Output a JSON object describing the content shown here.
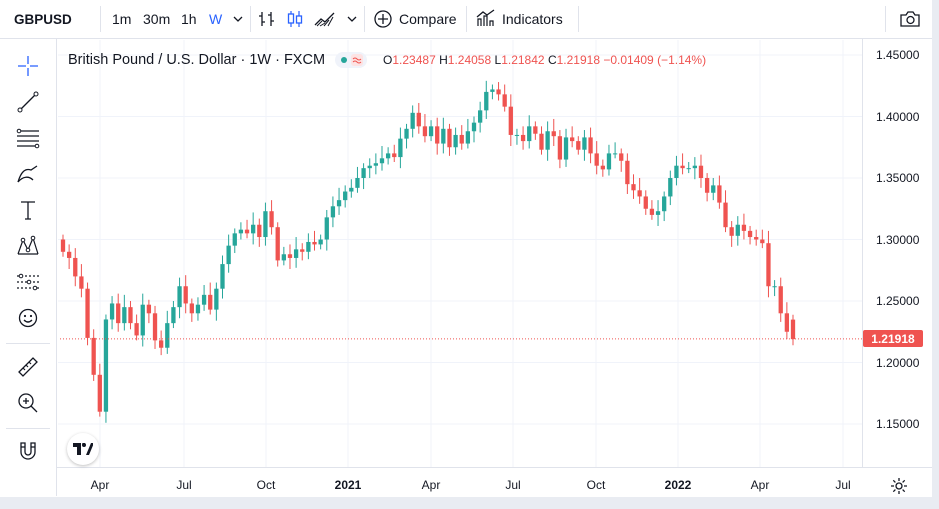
{
  "toolbar": {
    "symbol": "GBPUSD",
    "timeframes": [
      "1m",
      "30m",
      "1h",
      "W"
    ],
    "active_timeframe": "W",
    "compare_label": "Compare",
    "indicators_label": "Indicators"
  },
  "legend": {
    "title": "British Pound / U.S. Dollar · 1W · FXCM",
    "o_key": "O",
    "o_val": "1.23487",
    "h_key": "H",
    "h_val": "1.24058",
    "l_key": "L",
    "l_val": "1.21842",
    "c_key": "C",
    "c_val": "1.21918",
    "change": "−0.01409 (−1.14%)"
  },
  "current_price": "1.21918",
  "colors": {
    "up": "#26a69a",
    "down": "#ef5350",
    "accent": "#2962ff"
  },
  "left_tools": [
    "crosshair-icon",
    "trend-line-icon",
    "fib-lines-icon",
    "brush-icon",
    "text-icon",
    "pattern-icon",
    "forecast-icon",
    "emoji-icon",
    "ruler-icon",
    "zoom-in-icon",
    "magnet-icon"
  ],
  "chart_data": {
    "type": "candlestick",
    "y_ticks": [
      "1.45000",
      "1.40000",
      "1.35000",
      "1.30000",
      "1.25000",
      "1.20000",
      "1.15000"
    ],
    "x_ticks": [
      {
        "label": "Apr",
        "bold": false
      },
      {
        "label": "Jul",
        "bold": false
      },
      {
        "label": "Oct",
        "bold": false
      },
      {
        "label": "2021",
        "bold": true
      },
      {
        "label": "Apr",
        "bold": false
      },
      {
        "label": "Jul",
        "bold": false
      },
      {
        "label": "Oct",
        "bold": false
      },
      {
        "label": "2022",
        "bold": true
      },
      {
        "label": "Apr",
        "bold": false
      },
      {
        "label": "Jul",
        "bold": false
      }
    ],
    "ylim": [
      1.115,
      1.455
    ],
    "close_path": [
      1.29,
      1.285,
      1.27,
      1.26,
      1.22,
      1.19,
      1.16,
      1.235,
      1.248,
      1.232,
      1.245,
      1.232,
      1.222,
      1.247,
      1.24,
      1.218,
      1.212,
      1.232,
      1.245,
      1.262,
      1.248,
      1.24,
      1.247,
      1.255,
      1.243,
      1.26,
      1.28,
      1.295,
      1.305,
      1.308,
      1.305,
      1.312,
      1.302,
      1.323,
      1.31,
      1.283,
      1.288,
      1.285,
      1.292,
      1.29,
      1.298,
      1.296,
      1.3,
      1.318,
      1.327,
      1.332,
      1.339,
      1.342,
      1.35,
      1.358,
      1.36,
      1.362,
      1.366,
      1.37,
      1.367,
      1.382,
      1.39,
      1.403,
      1.392,
      1.384,
      1.392,
      1.378,
      1.39,
      1.375,
      1.385,
      1.378,
      1.388,
      1.395,
      1.405,
      1.42,
      1.422,
      1.418,
      1.408,
      1.385,
      1.385,
      1.38,
      1.392,
      1.386,
      1.373,
      1.388,
      1.384,
      1.365,
      1.383,
      1.38,
      1.373,
      1.383,
      1.37,
      1.36,
      1.357,
      1.37,
      1.37,
      1.364,
      1.345,
      1.34,
      1.335,
      1.325,
      1.32,
      1.323,
      1.335,
      1.35,
      1.36,
      1.358,
      1.358,
      1.36,
      1.35,
      1.338,
      1.344,
      1.33,
      1.31,
      1.303,
      1.312,
      1.307,
      1.302,
      1.3,
      1.297,
      1.262,
      1.262,
      1.24,
      1.225,
      1.219
    ]
  }
}
